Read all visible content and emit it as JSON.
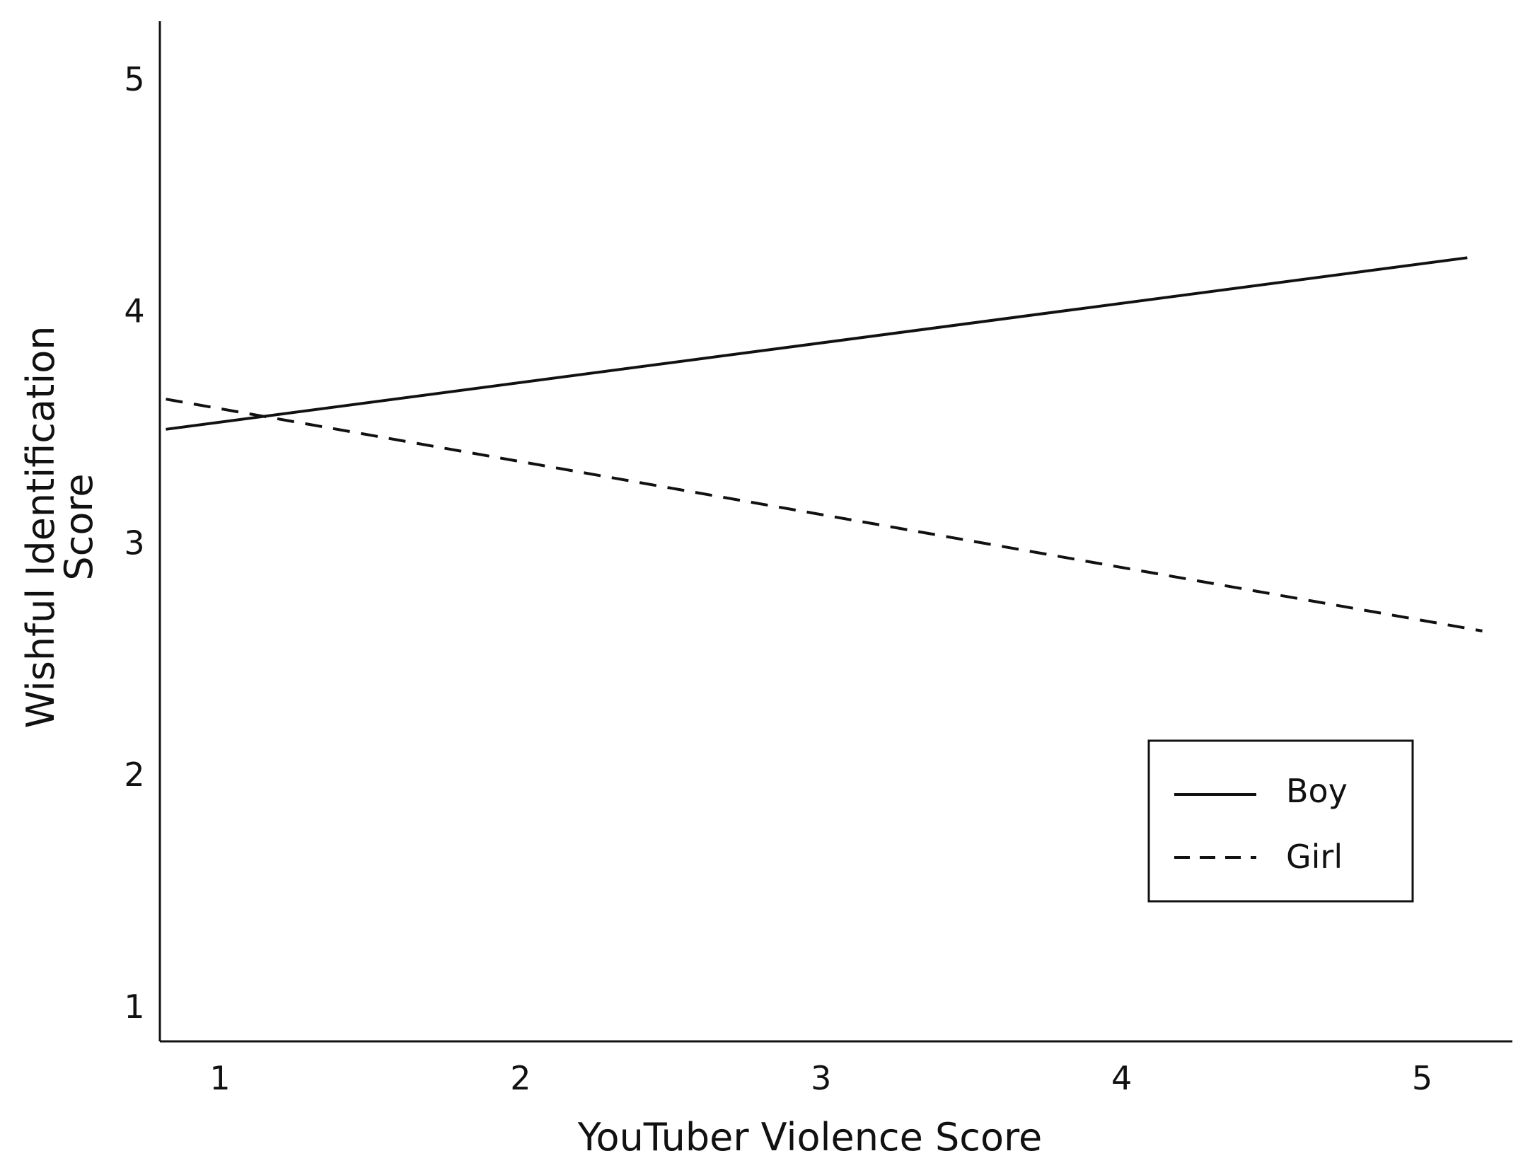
{
  "chart_data": {
    "type": "line",
    "title": "",
    "xlabel": "YouTuber Violence Score",
    "ylabel_lines": [
      "Wishful Identification",
      "Score"
    ],
    "xlim": [
      0.8,
      5.3
    ],
    "ylim": [
      0.85,
      5.25
    ],
    "x_ticks": [
      "1",
      "2",
      "3",
      "4",
      "5"
    ],
    "y_ticks": [
      "1",
      "2",
      "3",
      "4",
      "5"
    ],
    "grid": false,
    "legend_position": "lower-right",
    "series": [
      {
        "name": "Boy",
        "style": "solid",
        "color": "#111111",
        "x": [
          0.82,
          5.15
        ],
        "y": [
          3.49,
          4.23
        ]
      },
      {
        "name": "Girl",
        "style": "dashed",
        "color": "#111111",
        "x": [
          0.82,
          5.2
        ],
        "y": [
          3.62,
          2.62
        ]
      }
    ]
  }
}
